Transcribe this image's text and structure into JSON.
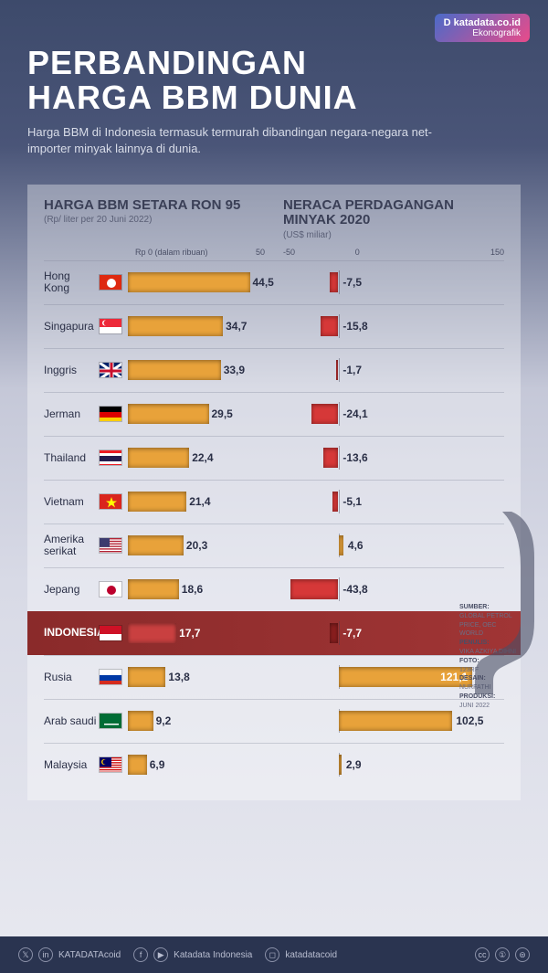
{
  "brand": {
    "line1": "D katadata.co.id",
    "line2": "Ekonografik"
  },
  "title_l1": "PERBANDINGAN",
  "title_l2": "HARGA BBM DUNIA",
  "subtitle": "Harga BBM di Indonesia termasuk termurah dibandingan negara-negara net- importer minyak lainnya di dunia.",
  "left_header": {
    "h": "HARGA BBM SETARA RON 95",
    "sub": "(Rp/ liter per 20 Juni 2022)"
  },
  "right_header": {
    "h": "NERACA PERDAGANGAN MINYAK 2020",
    "sub": "(US$ miliar)"
  },
  "price_axis": {
    "label": "Rp 0 (dalam ribuan)",
    "max_label": "50",
    "max": 50
  },
  "trade_axis": {
    "min_label": "-50",
    "zero_label": "0",
    "max_label": "150",
    "min": -50,
    "max": 150,
    "zero_frac": 0.25
  },
  "colors": {
    "price_bar": "#e8a23a",
    "trade_neg": "#d63838",
    "trade_pos": "#e8a23a",
    "highlight_bg": "#9a3030",
    "text": "#2a2f46"
  },
  "rows": [
    {
      "country": "Hong Kong",
      "price": 44.5,
      "price_label": "44,5",
      "trade": -7.5,
      "trade_label": "-7,5",
      "flag": "hk"
    },
    {
      "country": "Singapura",
      "price": 34.7,
      "price_label": "34,7",
      "trade": -15.8,
      "trade_label": "-15,8",
      "flag": "sg"
    },
    {
      "country": "Inggris",
      "price": 33.9,
      "price_label": "33,9",
      "trade": -1.7,
      "trade_label": "-1,7",
      "flag": "gb"
    },
    {
      "country": "Jerman",
      "price": 29.5,
      "price_label": "29,5",
      "trade": -24.1,
      "trade_label": "-24,1",
      "flag": "de"
    },
    {
      "country": "Thailand",
      "price": 22.4,
      "price_label": "22,4",
      "trade": -13.6,
      "trade_label": "-13,6",
      "flag": "th"
    },
    {
      "country": "Vietnam",
      "price": 21.4,
      "price_label": "21,4",
      "trade": -5.1,
      "trade_label": "-5,1",
      "flag": "vn"
    },
    {
      "country": "Amerika serikat",
      "price": 20.3,
      "price_label": "20,3",
      "trade": 4.6,
      "trade_label": "4,6",
      "flag": "us"
    },
    {
      "country": "Jepang",
      "price": 18.6,
      "price_label": "18,6",
      "trade": -43.8,
      "trade_label": "-43,8",
      "flag": "jp"
    },
    {
      "country": "INDONESIA",
      "price": 17.7,
      "price_label": "17,7",
      "trade": -7.7,
      "trade_label": "-7,7",
      "flag": "id",
      "highlight": true
    },
    {
      "country": "Rusia",
      "price": 13.8,
      "price_label": "13,8",
      "trade": 121.1,
      "trade_label": "121,1",
      "flag": "ru"
    },
    {
      "country": "Arab saudi",
      "price": 9.2,
      "price_label": "9,2",
      "trade": 102.5,
      "trade_label": "102,5",
      "flag": "sa"
    },
    {
      "country": "Malaysia",
      "price": 6.9,
      "price_label": "6,9",
      "trade": 2.9,
      "trade_label": "2,9",
      "flag": "my"
    }
  ],
  "credits": {
    "sumber_h": "SUMBER:",
    "sumber": "GLOBAL PETROL PRICE, OEC WORLD",
    "penulis_h": "PENULIS:",
    "penulis": "VIKA AZKIYA DIHNI",
    "foto_h": "FOTO:",
    "foto": "123RF",
    "desain_h": "DESAIN:",
    "desain": "NURFATHI",
    "produksi_h": "PRODUKSI:",
    "produksi": "JUNI 2022"
  },
  "footer": {
    "twitter": "KATADATAcoid",
    "facebook": "Katadata Indonesia",
    "instagram": "katadatacoid"
  }
}
